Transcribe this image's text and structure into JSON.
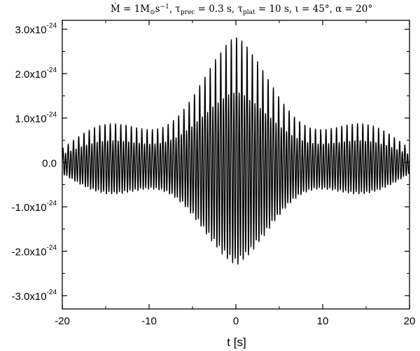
{
  "chart_data": {
    "type": "line",
    "title": {
      "text": "Ṁ = 1M⊙s⁻¹, τprec = 0.3 s, τplat = 10 s, ι = 45°, α = 20°",
      "parts": {
        "mdot": "Ṁ = 1M",
        "sun_sub": "⊙",
        "mdot_unit": "s",
        "mdot_exp": "−1",
        "tau_prec": ", τ",
        "prec_sub": "prec",
        "prec_val": " = 0.3 s, τ",
        "plat_sub": "plat",
        "plat_val": " = 10 s,  ι = 45°,  α = 20°"
      }
    },
    "xlabel": "t [s]",
    "ylabel": "",
    "xlim": [
      -20,
      20
    ],
    "ylim": [
      -3.3e-24,
      3.2e-24
    ],
    "x_ticks": [
      {
        "value": -20,
        "label": "-20"
      },
      {
        "value": -10,
        "label": "-10"
      },
      {
        "value": 0,
        "label": "0"
      },
      {
        "value": 10,
        "label": "10"
      },
      {
        "value": 20,
        "label": "20"
      }
    ],
    "y_ticks": [
      {
        "value": 3e-24,
        "mant": "3.0x10",
        "exp": "-24"
      },
      {
        "value": 2e-24,
        "mant": "2.0x10",
        "exp": "-24"
      },
      {
        "value": 1e-24,
        "mant": "1.0x10",
        "exp": "-24"
      },
      {
        "value": 0,
        "mant": "0.0",
        "exp": ""
      },
      {
        "value": -1e-24,
        "mant": "-1.0x10",
        "exp": "-24"
      },
      {
        "value": -2e-24,
        "mant": "-2.0x10",
        "exp": "-24"
      },
      {
        "value": -3e-24,
        "mant": "-3.0x10",
        "exp": "-24"
      }
    ],
    "grid": false,
    "legend": "none",
    "series": [
      {
        "color": "#000000",
        "signal": {
          "peak_amplitude": 2.85e-24,
          "edge_amplitude": 3.5e-25,
          "carrier_freq_hz": 3.3,
          "secondary_freq_hz": 1.65,
          "precession_period_s": 0.3,
          "envelope_center_s": 0,
          "envelope_half_width_s": 20
        }
      }
    ]
  }
}
